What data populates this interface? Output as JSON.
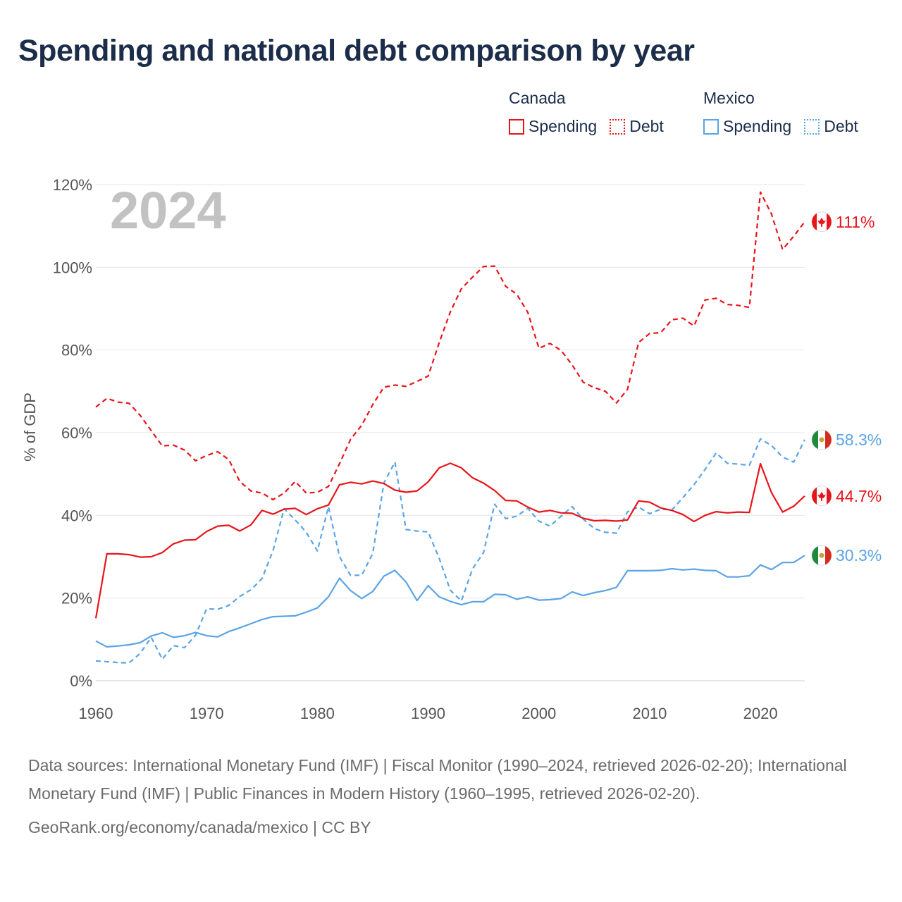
{
  "title": "Spending and national debt comparison by year",
  "legend": {
    "groups": [
      {
        "name": "Canada",
        "color": "#e8141a",
        "items": [
          {
            "label": "Spending",
            "style": "solid"
          },
          {
            "label": "Debt",
            "style": "dotted"
          }
        ]
      },
      {
        "name": "Mexico",
        "color": "#5ba4e5",
        "items": [
          {
            "label": "Spending",
            "style": "solid"
          },
          {
            "label": "Debt",
            "style": "dotted"
          }
        ]
      }
    ]
  },
  "year_watermark": "2024",
  "footer": {
    "sources": "Data sources: International Monetary Fund (IMF) | Fiscal Monitor (1990–2024, retrieved 2026-02-20); International Monetary Fund (IMF) | Public Finances in Modern History (1960–1995, retrieved 2026-02-20).",
    "link": "GeoRank.org/economy/canada/mexico | CC BY"
  },
  "chart_data": {
    "type": "line",
    "title": "Spending and national debt comparison by year",
    "xlabel": "",
    "ylabel": "% of GDP",
    "xlim": [
      1960,
      2024
    ],
    "ylim": [
      0,
      120
    ],
    "xticks": [
      1960,
      1970,
      1980,
      1990,
      2000,
      2010,
      2020
    ],
    "yticks": [
      0,
      20,
      40,
      60,
      80,
      100,
      120
    ],
    "ytick_labels": [
      "0%",
      "20%",
      "40%",
      "60%",
      "80%",
      "100%",
      "120%"
    ],
    "grid": "horizontal",
    "x": [
      1960,
      1961,
      1962,
      1963,
      1964,
      1965,
      1966,
      1967,
      1968,
      1969,
      1970,
      1971,
      1972,
      1973,
      1974,
      1975,
      1976,
      1977,
      1978,
      1979,
      1980,
      1981,
      1982,
      1983,
      1984,
      1985,
      1986,
      1987,
      1988,
      1989,
      1990,
      1991,
      1992,
      1993,
      1994,
      1995,
      1996,
      1997,
      1998,
      1999,
      2000,
      2001,
      2002,
      2003,
      2004,
      2005,
      2006,
      2007,
      2008,
      2009,
      2010,
      2011,
      2012,
      2013,
      2014,
      2015,
      2016,
      2017,
      2018,
      2019,
      2020,
      2021,
      2022,
      2023,
      2024
    ],
    "series": [
      {
        "name": "Canada Debt",
        "country": "Canada",
        "color": "#e8141a",
        "dash": true,
        "end_label": "111%",
        "values": [
          66.2,
          68.3,
          67.4,
          67.1,
          64.2,
          60.5,
          56.8,
          57.0,
          55.8,
          53.2,
          54.5,
          55.4,
          53.5,
          48.2,
          45.9,
          45.4,
          43.8,
          45.4,
          48.2,
          45.4,
          45.6,
          47.0,
          52.5,
          58.4,
          61.8,
          66.8,
          71.0,
          71.5,
          71.2,
          72.4,
          73.7,
          81.8,
          89.2,
          94.8,
          97.6,
          100.2,
          100.3,
          95.4,
          93.5,
          89.1,
          80.4,
          81.6,
          79.9,
          76.4,
          72.2,
          70.9,
          70.0,
          67.2,
          70.5,
          81.8,
          84.0,
          84.2,
          87.3,
          87.7,
          85.8,
          92.1,
          92.5,
          91.0,
          90.8,
          90.3,
          118.2,
          112.9,
          104.3,
          107.5,
          111.0
        ]
      },
      {
        "name": "Mexico Debt",
        "country": "Mexico",
        "color": "#5ba4e5",
        "dash": true,
        "end_label": "58.3%",
        "values": [
          4.8,
          4.6,
          4.4,
          4.3,
          6.6,
          10.5,
          5.2,
          8.5,
          8.0,
          11.0,
          17.4,
          17.3,
          18.2,
          20.4,
          22.0,
          24.7,
          31.5,
          41.6,
          38.9,
          35.9,
          31.4,
          42.1,
          30.0,
          25.5,
          25.5,
          30.8,
          47.8,
          52.9,
          36.6,
          36.2,
          36.0,
          29.6,
          21.9,
          19.3,
          27.0,
          31.0,
          42.7,
          39.2,
          39.8,
          41.7,
          38.6,
          37.4,
          39.8,
          42.1,
          39.1,
          36.8,
          35.9,
          35.7,
          40.9,
          42.0,
          40.4,
          41.5,
          41.3,
          44.3,
          47.4,
          51.1,
          55.1,
          52.6,
          52.4,
          52.1,
          58.5,
          56.9,
          54.1,
          52.9,
          58.3
        ]
      },
      {
        "name": "Canada Spending",
        "country": "Canada",
        "color": "#e8141a",
        "dash": false,
        "end_label": "44.7%",
        "values": [
          15.1,
          30.7,
          30.7,
          30.5,
          29.9,
          30.0,
          31.0,
          33.1,
          34.0,
          34.1,
          36.1,
          37.4,
          37.6,
          36.2,
          37.7,
          41.2,
          40.3,
          41.5,
          41.7,
          40.2,
          41.6,
          42.5,
          47.4,
          48.0,
          47.6,
          48.3,
          47.7,
          46.1,
          45.6,
          45.9,
          48.1,
          51.5,
          52.6,
          51.5,
          49.1,
          47.8,
          46.0,
          43.6,
          43.5,
          42.0,
          40.8,
          41.2,
          40.6,
          40.5,
          39.3,
          38.7,
          38.8,
          38.6,
          38.9,
          43.5,
          43.2,
          41.8,
          41.2,
          40.2,
          38.5,
          40.0,
          40.9,
          40.6,
          40.8,
          40.7,
          52.5,
          45.5,
          40.8,
          42.2,
          44.7
        ]
      },
      {
        "name": "Mexico Spending",
        "country": "Mexico",
        "color": "#5ba4e5",
        "dash": false,
        "end_label": "30.3%",
        "values": [
          9.6,
          8.2,
          8.4,
          8.7,
          9.2,
          10.8,
          11.6,
          10.5,
          10.9,
          11.7,
          10.9,
          10.6,
          11.9,
          12.8,
          13.8,
          14.8,
          15.5,
          15.6,
          15.7,
          16.6,
          17.6,
          20.3,
          24.8,
          21.8,
          19.9,
          21.6,
          25.3,
          26.7,
          23.9,
          19.4,
          23.0,
          20.3,
          19.2,
          18.4,
          19.1,
          19.1,
          20.9,
          20.8,
          19.7,
          20.3,
          19.5,
          19.6,
          19.9,
          21.5,
          20.6,
          21.3,
          21.8,
          22.6,
          26.6,
          26.6,
          26.6,
          26.7,
          27.1,
          26.8,
          27.0,
          26.7,
          26.6,
          25.1,
          25.1,
          25.4,
          28.0,
          26.9,
          28.6,
          28.6,
          30.3
        ]
      }
    ]
  }
}
